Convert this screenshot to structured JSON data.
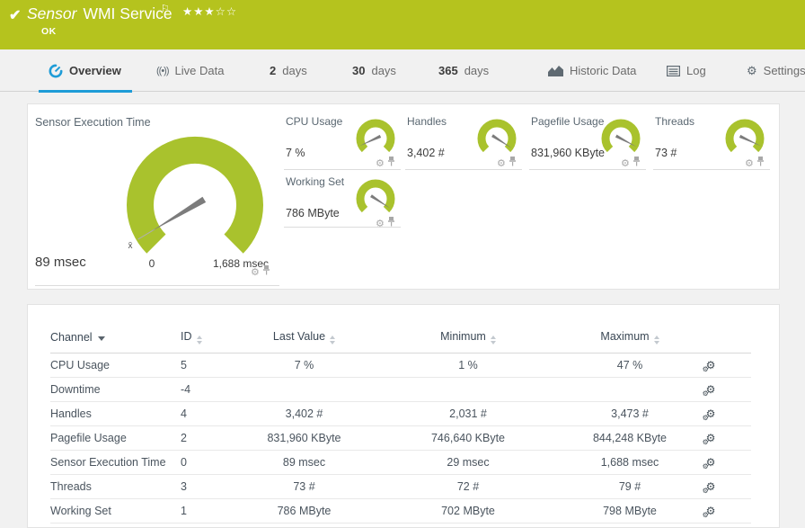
{
  "colors": {
    "brand_green": "#b5c31e",
    "gauge_green": "#a9c22d",
    "tab_blue": "#1e9cd7"
  },
  "icons": {
    "check": "✔",
    "flag": "⚐",
    "stars_filled": "★★★",
    "stars_empty": "☆☆",
    "live": "((•))",
    "gear": "⚙",
    "gear_small": "⚙"
  },
  "header": {
    "title_prefix": "Sensor",
    "title": "WMI Service",
    "status": "OK",
    "rating": "3 of 5 stars"
  },
  "tabs": [
    {
      "label": "Overview",
      "active": true
    },
    {
      "label": "Live Data"
    },
    {
      "num": "2",
      "label": "days"
    },
    {
      "num": "30",
      "label": "days"
    },
    {
      "num": "365",
      "label": "days"
    },
    {
      "label": "Historic Data"
    },
    {
      "label": "Log"
    },
    {
      "label": "Settings"
    }
  ],
  "gauges": {
    "main": {
      "title": "Sensor Execution Time",
      "value": "89 msec",
      "scale_min": "0",
      "scale_max": "1,688 msec",
      "mean_label": "x̄",
      "needle_deg": 149
    },
    "small": [
      {
        "title": "CPU Usage",
        "value": "7 %",
        "needle_deg": 155
      },
      {
        "title": "Handles",
        "value": "3,402 #",
        "needle_deg": 33
      },
      {
        "title": "Pagefile Usage",
        "value": "831,960 KByte",
        "needle_deg": 28
      },
      {
        "title": "Threads",
        "value": "73 #",
        "needle_deg": 25
      },
      {
        "title": "Working Set",
        "value": "786 MByte",
        "needle_deg": 33
      }
    ]
  },
  "table": {
    "columns": [
      "Channel",
      "ID",
      "Last Value",
      "Minimum",
      "Maximum"
    ],
    "sorted_by": "Channel",
    "rows": [
      {
        "channel": "CPU Usage",
        "id": "5",
        "last": "7 %",
        "min": "1 %",
        "max": "47 %"
      },
      {
        "channel": "Downtime",
        "id": "-4",
        "last": "",
        "min": "",
        "max": ""
      },
      {
        "channel": "Handles",
        "id": "4",
        "last": "3,402 #",
        "min": "2,031 #",
        "max": "3,473 #"
      },
      {
        "channel": "Pagefile Usage",
        "id": "2",
        "last": "831,960 KByte",
        "min": "746,640 KByte",
        "max": "844,248 KByte"
      },
      {
        "channel": "Sensor Execution Time",
        "id": "0",
        "last": "89 msec",
        "min": "29 msec",
        "max": "1,688 msec"
      },
      {
        "channel": "Threads",
        "id": "3",
        "last": "73 #",
        "min": "72 #",
        "max": "79 #"
      },
      {
        "channel": "Working Set",
        "id": "1",
        "last": "786 MByte",
        "min": "702 MByte",
        "max": "798 MByte"
      }
    ]
  }
}
